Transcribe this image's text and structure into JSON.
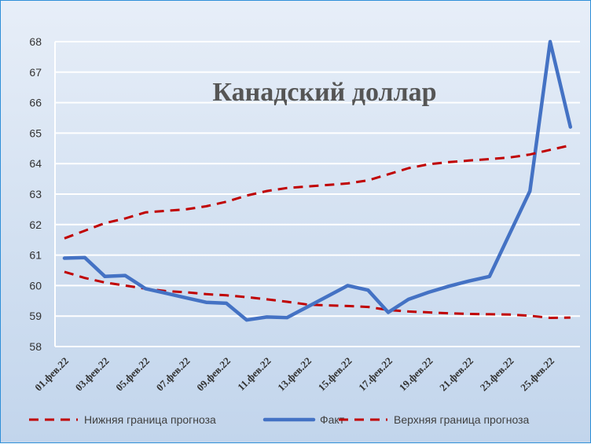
{
  "chart_data": {
    "type": "line",
    "title": "Канадский доллар",
    "xlabel": "",
    "ylabel": "",
    "ylim": [
      58,
      68
    ],
    "yticks": [
      58,
      59,
      60,
      61,
      62,
      63,
      64,
      65,
      66,
      67,
      68
    ],
    "grid": true,
    "legend_position": "bottom",
    "categories": [
      "01.фев.22",
      "02.фев.22",
      "03.фев.22",
      "04.фев.22",
      "05.фев.22",
      "06.фев.22",
      "07.фев.22",
      "08.фев.22",
      "09.фев.22",
      "10.фев.22",
      "11.фев.22",
      "12.фев.22",
      "13.фев.22",
      "14.фев.22",
      "15.фев.22",
      "16.фев.22",
      "17.фев.22",
      "18.фев.22",
      "19.фев.22",
      "20.фев.22",
      "21.фев.22",
      "22.фев.22",
      "23.фев.22",
      "24.фев.22",
      "25.фев.22",
      "26.фев.22"
    ],
    "x_tick_labels": [
      "01.фев.22",
      "03.фев.22",
      "05.фев.22",
      "07.фев.22",
      "09.фев.22",
      "11.фев.22",
      "13.фев.22",
      "15.фев.22",
      "17.фев.22",
      "19.фев.22",
      "21.фев.22",
      "23.фев.22",
      "25.фев.22"
    ],
    "series": [
      {
        "name": "Нижняя граница прогноза",
        "style": "dashed",
        "color": "#c00000",
        "values": [
          60.45,
          60.25,
          60.1,
          60.0,
          59.9,
          59.82,
          59.78,
          59.72,
          59.68,
          59.62,
          59.55,
          59.47,
          59.38,
          59.35,
          59.33,
          59.3,
          59.2,
          59.15,
          59.12,
          59.09,
          59.07,
          59.06,
          59.05,
          59.01,
          58.94,
          58.95
        ]
      },
      {
        "name": "Факт",
        "style": "solid",
        "color": "#4472c4",
        "values": [
          60.9,
          60.92,
          60.3,
          60.33,
          59.9,
          59.75,
          59.6,
          59.45,
          59.42,
          58.87,
          58.97,
          58.95,
          59.3,
          59.65,
          60.0,
          59.85,
          59.12,
          59.55,
          59.78,
          59.98,
          60.15,
          60.3,
          61.7,
          63.1,
          68.0,
          65.2
        ]
      },
      {
        "name": "Верхняя граница прогноза",
        "style": "dashed",
        "color": "#c00000",
        "values": [
          61.55,
          61.8,
          62.05,
          62.2,
          62.4,
          62.45,
          62.5,
          62.6,
          62.75,
          62.95,
          63.1,
          63.2,
          63.25,
          63.3,
          63.35,
          63.45,
          63.65,
          63.85,
          63.98,
          64.05,
          64.1,
          64.15,
          64.2,
          64.3,
          64.45,
          64.6
        ]
      }
    ]
  }
}
